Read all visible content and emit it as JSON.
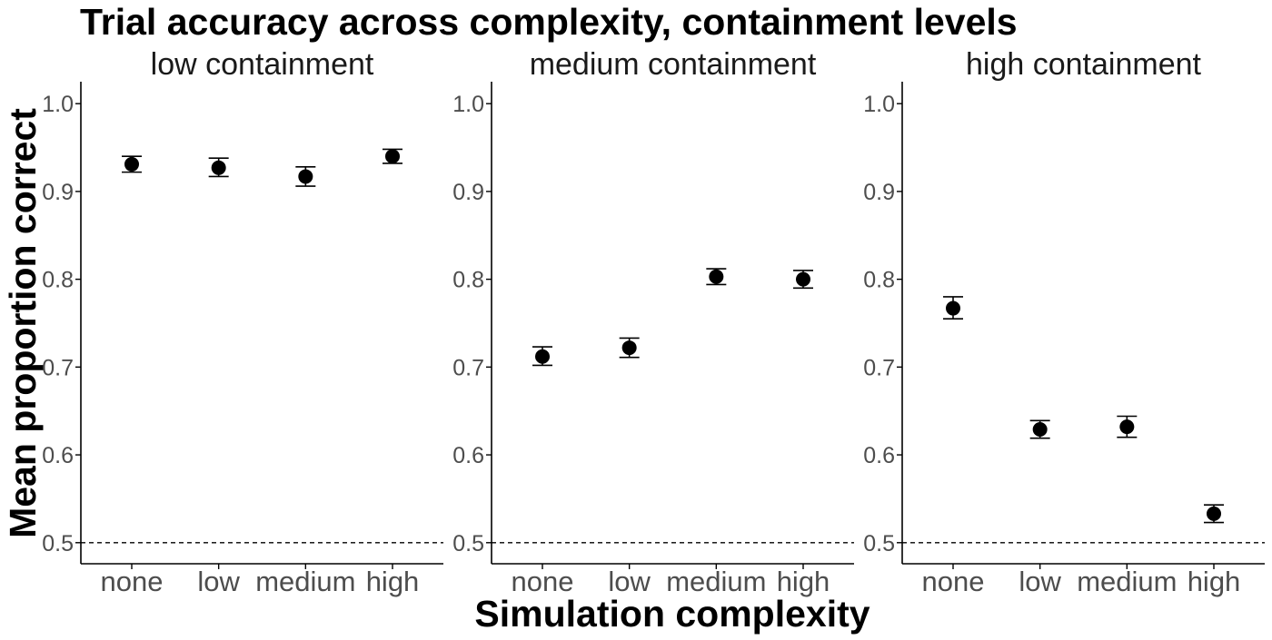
{
  "chart_data": {
    "type": "scatter",
    "title": "Trial accuracy across complexity, containment levels",
    "xlabel": "Simulation complexity",
    "ylabel": "Mean proportion correct",
    "categories": [
      "none",
      "low",
      "medium",
      "high"
    ],
    "ylim": [
      0.476,
      1.025
    ],
    "yticks": [
      0.5,
      0.6,
      0.7,
      0.8,
      0.9,
      1.0
    ],
    "ytick_labels": [
      "0.5",
      "0.6",
      "0.7",
      "0.8",
      "0.9",
      "1.0"
    ],
    "reference_line": 0.5,
    "grid": false,
    "panels": [
      {
        "facet": "low containment",
        "mean": [
          0.931,
          0.927,
          0.917,
          0.94
        ],
        "lower": [
          0.922,
          0.917,
          0.906,
          0.932
        ],
        "upper": [
          0.94,
          0.938,
          0.928,
          0.948
        ]
      },
      {
        "facet": "medium containment",
        "mean": [
          0.712,
          0.722,
          0.803,
          0.8
        ],
        "lower": [
          0.702,
          0.711,
          0.794,
          0.79
        ],
        "upper": [
          0.723,
          0.733,
          0.812,
          0.81
        ]
      },
      {
        "facet": "high containment",
        "mean": [
          0.767,
          0.629,
          0.632,
          0.533
        ],
        "lower": [
          0.755,
          0.619,
          0.62,
          0.523
        ],
        "upper": [
          0.78,
          0.639,
          0.644,
          0.543
        ]
      }
    ]
  }
}
